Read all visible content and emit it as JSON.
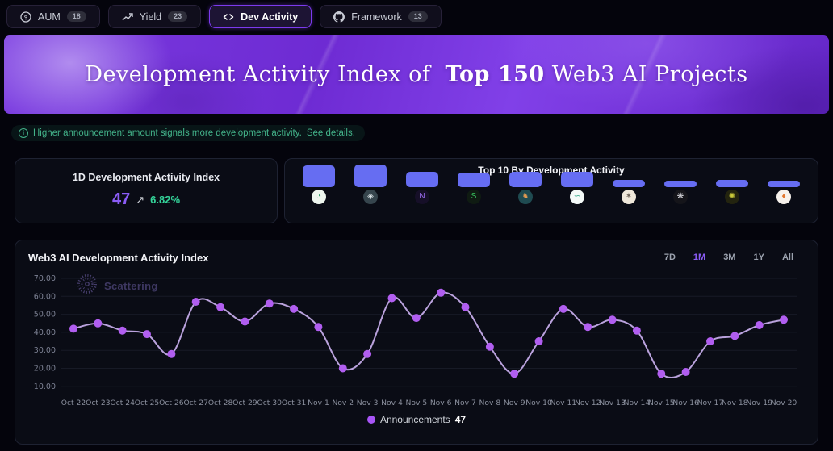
{
  "nav": {
    "tabs": [
      {
        "label": "AUM",
        "badge": "18",
        "icon": "dollar-circle-icon",
        "active": false
      },
      {
        "label": "Yield",
        "badge": "23",
        "icon": "trend-up-icon",
        "active": false
      },
      {
        "label": "Dev Activity",
        "badge": "",
        "icon": "code-icon",
        "active": true
      },
      {
        "label": "Framework",
        "badge": "13",
        "icon": "github-icon",
        "active": false
      }
    ]
  },
  "banner": {
    "title_prefix": "Development Activity Index of",
    "title_highlight": "Top 150",
    "title_suffix": "Web3 AI Projects"
  },
  "notice": {
    "text": "Higher announcement amount signals more development activity.",
    "link": "See details."
  },
  "index_card": {
    "title": "1D Development Activity Index",
    "value": "47",
    "change_arrow": "↗",
    "change": "6.82%",
    "direction": "up"
  },
  "top10_card": {
    "title": "Top 10 By Development Activity"
  },
  "main_chart": {
    "title": "Web3 AI Development Activity Index",
    "ranges": [
      "7D",
      "1M",
      "3M",
      "1Y",
      "All"
    ],
    "active_range": "1M",
    "watermark": "Scattering",
    "legend_label": "Announcements",
    "legend_value": "47"
  },
  "colors": {
    "accent_purple": "#8b5cf6",
    "line_lavender": "#cdb2f3",
    "dot_purple": "#b15ef0",
    "bar_indigo": "#666df2",
    "positive_green": "#34d399"
  },
  "chart_data": [
    {
      "type": "bar",
      "title": "Top 10 By Development Activity",
      "values": [
        27,
        28,
        19,
        18,
        19,
        19,
        9,
        8,
        9,
        8
      ],
      "bar_color": "#666df2",
      "icons": [
        {
          "name": "project-logo-1",
          "bg": "#eef6ee",
          "fg": "#3aa06b",
          "glyph": "◔"
        },
        {
          "name": "project-logo-2",
          "bg": "#36454d",
          "fg": "#d8e0e4",
          "glyph": "◈"
        },
        {
          "name": "project-logo-3",
          "bg": "#160f28",
          "fg": "#9a6cf0",
          "glyph": "N"
        },
        {
          "name": "project-logo-4",
          "bg": "#0f1b12",
          "fg": "#38c45e",
          "glyph": "S"
        },
        {
          "name": "project-logo-5",
          "bg": "#1f4b51",
          "fg": "#e09a52",
          "glyph": "♞"
        },
        {
          "name": "project-logo-6",
          "bg": "#f4faf8",
          "fg": "#2aa583",
          "glyph": "∽"
        },
        {
          "name": "project-logo-7",
          "bg": "#efe8da",
          "fg": "#6b6156",
          "glyph": "✶"
        },
        {
          "name": "project-logo-8",
          "bg": "#15151a",
          "fg": "#e8e8ee",
          "glyph": "❋"
        },
        {
          "name": "project-logo-9",
          "bg": "#23240f",
          "fg": "#c9c93a",
          "glyph": "✺"
        },
        {
          "name": "project-logo-10",
          "bg": "#f7f2ec",
          "fg": "#e2772e",
          "glyph": "♦"
        }
      ]
    },
    {
      "type": "line",
      "title": "Web3 AI Development Activity Index",
      "x": [
        "Oct 22",
        "Oct 23",
        "Oct 24",
        "Oct 25",
        "Oct 26",
        "Oct 27",
        "Oct 28",
        "Oct 29",
        "Oct 30",
        "Oct 31",
        "Nov 1",
        "Nov 2",
        "Nov 3",
        "Nov 4",
        "Nov 5",
        "Nov 6",
        "Nov 7",
        "Nov 8",
        "Nov 9",
        "Nov 10",
        "Nov 11",
        "Nov 12",
        "Nov 13",
        "Nov 14",
        "Nov 15",
        "Nov 16",
        "Nov 17",
        "Nov 18",
        "Nov 19",
        "Nov 20"
      ],
      "series": [
        {
          "name": "Announcements",
          "values": [
            42,
            45,
            41,
            39,
            28,
            57,
            54,
            46,
            56,
            53,
            43,
            20,
            28,
            59,
            48,
            62,
            54,
            32,
            17,
            35,
            53,
            43,
            47,
            41,
            17,
            18,
            35,
            38,
            44,
            47
          ]
        }
      ],
      "yticks": [
        70,
        60,
        50,
        40,
        30,
        20,
        10
      ],
      "ylim": [
        10,
        70
      ],
      "grid": true,
      "legend_position": "bottom"
    }
  ]
}
